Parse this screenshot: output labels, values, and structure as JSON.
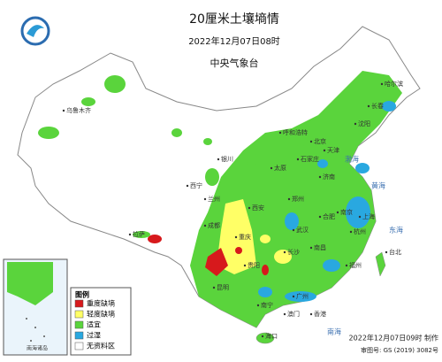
{
  "header": {
    "title": "20厘米土壤墒情",
    "date": "2022年12月07日08时",
    "issuer": "中央气象台"
  },
  "legend": {
    "title": "图例",
    "items": [
      {
        "label": "重度缺墒",
        "color": "#d7191c"
      },
      {
        "label": "轻度缺墒",
        "color": "#ffff66"
      },
      {
        "label": "适宜",
        "color": "#5ad43c"
      },
      {
        "label": "过湿",
        "color": "#29a8e0"
      },
      {
        "label": "无资料区",
        "color": "#ffffff"
      }
    ]
  },
  "map": {
    "cities": [
      "乌鲁木齐",
      "拉萨",
      "西宁",
      "兰州",
      "银川",
      "呼和浩特",
      "哈尔滨",
      "长春",
      "沈阳",
      "北京",
      "天津",
      "石家庄",
      "太原",
      "济南",
      "西安",
      "郑州",
      "南京",
      "合肥",
      "上海",
      "武汉",
      "杭州",
      "成都",
      "重庆",
      "长沙",
      "南昌",
      "贵阳",
      "福州",
      "台北",
      "昆明",
      "南宁",
      "广州",
      "香港",
      "澳门",
      "海口"
    ],
    "seas": [
      "渤海",
      "黄海",
      "东海",
      "南海"
    ],
    "inset_label": "南海诸岛"
  },
  "footer": {
    "made": "2022年12月07日09时 制作",
    "approval": "审图号: GS (2019) 3082号"
  }
}
